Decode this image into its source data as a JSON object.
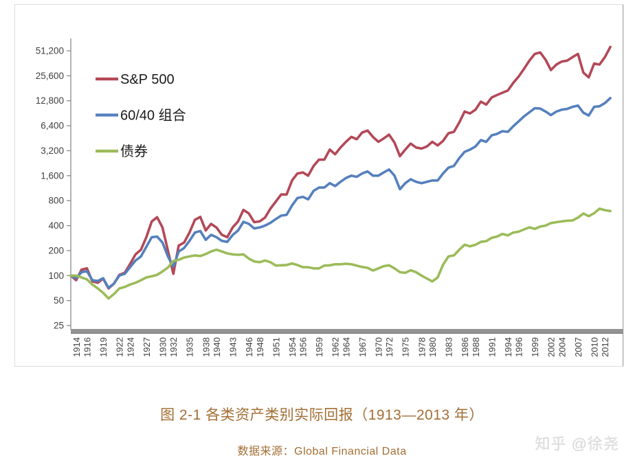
{
  "title": {
    "text": "图 2-1 各类资产类别实际回报（1913—2013 年）",
    "color": "#A36E33"
  },
  "source": {
    "text": "数据来源：Global Financial Data",
    "color": "#A36E33"
  },
  "watermark": {
    "text": "知乎 @徐尧",
    "color": "#D9D9D9"
  },
  "chart_data": {
    "type": "line",
    "y_scale": "log2",
    "grid": false,
    "legend_position": "top-left",
    "ylim": [
      25,
      51200
    ],
    "y_ticks": [
      25,
      50,
      100,
      200,
      400,
      800,
      1600,
      3200,
      6400,
      12800,
      25600,
      51200
    ],
    "x_range": [
      1913,
      2013
    ],
    "x_tick_years": [
      1914,
      1916,
      1919,
      1922,
      1924,
      1927,
      1930,
      1932,
      1935,
      1938,
      1940,
      1943,
      1946,
      1948,
      1951,
      1954,
      1956,
      1959,
      1962,
      1964,
      1967,
      1970,
      1972,
      1975,
      1978,
      1980,
      1983,
      1986,
      1988,
      1991,
      1994,
      1996,
      1999,
      2002,
      2004,
      2007,
      2010,
      2012
    ],
    "axis_color": "#808080",
    "label_color": "#404040",
    "series": [
      {
        "name": "S&P 500",
        "color": "#B34857",
        "values": [
          100,
          88,
          118,
          122,
          85,
          82,
          92,
          70,
          80,
          102,
          108,
          138,
          180,
          205,
          290,
          450,
          505,
          380,
          200,
          105,
          230,
          250,
          330,
          470,
          510,
          350,
          420,
          380,
          310,
          290,
          380,
          450,
          620,
          560,
          440,
          450,
          500,
          640,
          780,
          950,
          950,
          1400,
          1700,
          1750,
          1600,
          2100,
          2500,
          2500,
          3300,
          2900,
          3500,
          4100,
          4700,
          4400,
          5300,
          5600,
          4700,
          4100,
          4500,
          5000,
          4000,
          2750,
          3300,
          3900,
          3500,
          3400,
          3600,
          4100,
          3700,
          4200,
          5200,
          5400,
          7000,
          9500,
          9000,
          10000,
          12500,
          11500,
          14000,
          15000,
          16000,
          17000,
          21000,
          25000,
          31000,
          39000,
          47000,
          49000,
          40000,
          30000,
          35000,
          38000,
          39000,
          43000,
          47000,
          28000,
          24500,
          36000,
          35000,
          43000,
          57000
        ]
      },
      {
        "name": "60/40 组合",
        "color": "#5580BD",
        "values": [
          100,
          93,
          110,
          113,
          88,
          86,
          93,
          71,
          80,
          100,
          105,
          126,
          152,
          170,
          222,
          290,
          295,
          250,
          170,
          128,
          195,
          215,
          262,
          330,
          345,
          270,
          310,
          290,
          262,
          255,
          308,
          350,
          445,
          420,
          370,
          380,
          400,
          432,
          480,
          528,
          540,
          700,
          860,
          890,
          830,
          1050,
          1150,
          1150,
          1300,
          1200,
          1350,
          1500,
          1600,
          1550,
          1700,
          1800,
          1600,
          1600,
          1750,
          1900,
          1600,
          1100,
          1300,
          1450,
          1350,
          1300,
          1350,
          1400,
          1400,
          1700,
          2000,
          2100,
          2600,
          3100,
          3300,
          3600,
          4300,
          4100,
          4900,
          5100,
          5500,
          5400,
          6300,
          7200,
          8300,
          9300,
          10400,
          10300,
          9500,
          8600,
          9500,
          10000,
          10200,
          10800,
          11200,
          9200,
          8500,
          10800,
          11000,
          12000,
          13800
        ]
      },
      {
        "name": "债券",
        "color": "#9BBB59",
        "values": [
          100,
          100,
          95,
          90,
          78,
          70,
          62,
          53,
          60,
          70,
          73,
          78,
          82,
          88,
          95,
          98,
          102,
          112,
          125,
          150,
          155,
          165,
          170,
          175,
          172,
          182,
          195,
          205,
          195,
          185,
          180,
          178,
          180,
          160,
          148,
          145,
          152,
          145,
          132,
          133,
          134,
          140,
          134,
          126,
          126,
          122,
          122,
          132,
          133,
          137,
          137,
          139,
          137,
          132,
          127,
          124,
          115,
          122,
          130,
          133,
          122,
          110,
          108,
          116,
          110,
          100,
          92,
          85,
          95,
          135,
          170,
          175,
          205,
          235,
          225,
          235,
          255,
          260,
          285,
          295,
          318,
          305,
          330,
          338,
          360,
          382,
          365,
          390,
          400,
          430,
          440,
          450,
          458,
          462,
          500,
          560,
          520,
          565,
          640,
          615,
          600
        ]
      }
    ]
  }
}
